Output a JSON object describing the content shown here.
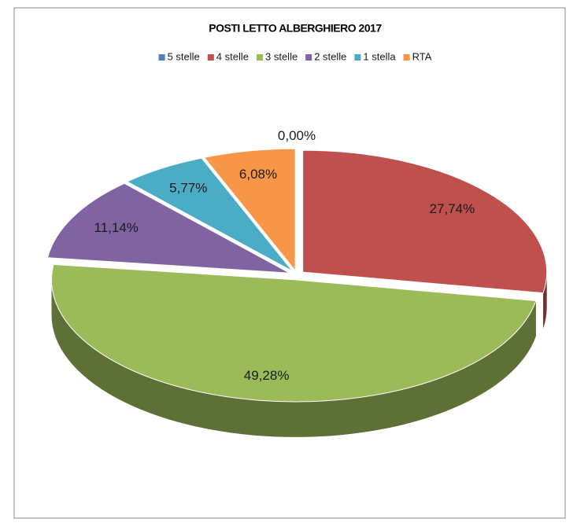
{
  "chart_data": {
    "type": "pie",
    "title": "POSTI LETTO ALBERGHIERO 2017",
    "categories": [
      "5 stelle",
      "4 stelle",
      "3 stelle",
      "2 stelle",
      "1 stella",
      "RTA"
    ],
    "values": [
      0.0,
      27.74,
      49.28,
      11.14,
      5.77,
      6.08
    ],
    "value_labels": [
      "0,00%",
      "27,74%",
      "49,28%",
      "11,14%",
      "5,77%",
      "6,08%"
    ],
    "colors": [
      "#4f81bd",
      "#c0504d",
      "#9bbb59",
      "#8064a2",
      "#4bacc6",
      "#f79646"
    ],
    "legend": "top"
  }
}
